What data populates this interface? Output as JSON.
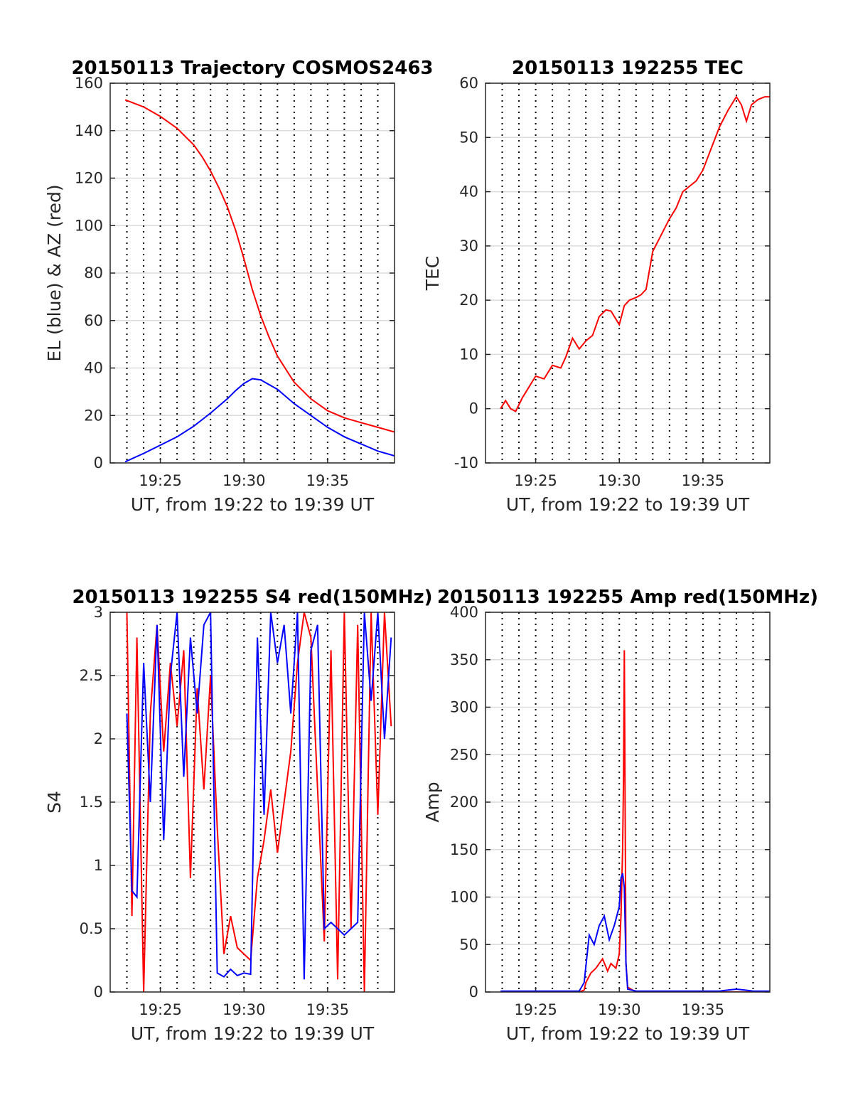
{
  "colors": {
    "red": "#ff0000",
    "blue": "#0000ff"
  },
  "chart_data": [
    {
      "type": "line",
      "title": "20150113 Trajectory COSMOS2463",
      "xlabel": "UT, from 19:22 to 19:39 UT",
      "ylabel": "EL (blue) & AZ (red)",
      "xlim": [
        0,
        17
      ],
      "ylim": [
        0,
        160
      ],
      "yticks": [
        "0",
        "20",
        "40",
        "60",
        "80",
        "100",
        "120",
        "140",
        "160"
      ],
      "xticks": [
        {
          "x": 3,
          "label": "19:25"
        },
        {
          "x": 8,
          "label": "19:30"
        },
        {
          "x": 13,
          "label": "19:35"
        }
      ],
      "grid": true,
      "series": [
        {
          "color": "red",
          "x": [
            0.9,
            2,
            3,
            4,
            5,
            5.5,
            6,
            6.5,
            7,
            7.5,
            8,
            8.5,
            9,
            9.5,
            10,
            11,
            12,
            13,
            14,
            15,
            16,
            17
          ],
          "y": [
            153,
            150,
            146,
            141,
            134,
            129,
            123,
            116,
            108,
            98,
            86,
            73,
            62,
            53,
            45,
            34,
            27,
            22,
            19,
            17,
            15,
            13
          ]
        },
        {
          "color": "blue",
          "x": [
            0.9,
            2,
            3,
            4,
            5,
            6,
            7,
            7.5,
            8,
            8.5,
            9,
            10,
            11,
            12,
            13,
            14,
            15,
            16,
            17
          ],
          "y": [
            0.5,
            4,
            7.5,
            11,
            15.5,
            21,
            27,
            30.5,
            33.5,
            35.5,
            35,
            31,
            25,
            20,
            15,
            11,
            8,
            5,
            3
          ]
        }
      ]
    },
    {
      "type": "line",
      "title": "20150113 192255 TEC",
      "xlabel": "UT, from 19:22 to 19:39 UT",
      "ylabel": "TEC",
      "xlim": [
        0,
        17
      ],
      "ylim": [
        -10,
        60
      ],
      "yticks": [
        "-10",
        "0",
        "10",
        "20",
        "30",
        "40",
        "50",
        "60"
      ],
      "xticks": [
        {
          "x": 3,
          "label": "19:25"
        },
        {
          "x": 8,
          "label": "19:30"
        },
        {
          "x": 13,
          "label": "19:35"
        }
      ],
      "grid": true,
      "series": [
        {
          "color": "red",
          "x": [
            0.9,
            1.2,
            1.5,
            1.8,
            2.2,
            2.6,
            3,
            3.5,
            4,
            4.5,
            4.8,
            5.2,
            5.6,
            6,
            6.4,
            6.8,
            7.2,
            7.5,
            7.8,
            8.0,
            8.3,
            8.6,
            9,
            9.3,
            9.6,
            10,
            10.5,
            11,
            11.4,
            11.8,
            12.2,
            12.6,
            13,
            13.5,
            14,
            14.5,
            15,
            15.3,
            15.6,
            15.9,
            16.3,
            16.7,
            17
          ],
          "y": [
            0,
            1.5,
            0,
            -0.5,
            2,
            4,
            6,
            5.5,
            8,
            7.5,
            9.5,
            13,
            11,
            12.5,
            13.5,
            17,
            18.2,
            18,
            16.5,
            15.5,
            19,
            20,
            20.5,
            21,
            22,
            29,
            32,
            35,
            37,
            40,
            41,
            42,
            44,
            48,
            52,
            55,
            57.5,
            56,
            53,
            56,
            57,
            57.5,
            57.5
          ]
        }
      ]
    },
    {
      "type": "line",
      "title": "20150113 192255 S4 red(150MHz)",
      "xlabel": "UT, from 19:22 to 19:39 UT",
      "ylabel": "S4",
      "xlim": [
        0,
        17
      ],
      "ylim": [
        0,
        3
      ],
      "yticks": [
        "0",
        "0.5",
        "1",
        "1.5",
        "2",
        "2.5",
        "3"
      ],
      "xticks": [
        {
          "x": 3,
          "label": "19:25"
        },
        {
          "x": 8,
          "label": "19:30"
        },
        {
          "x": 13,
          "label": "19:35"
        }
      ],
      "grid": true,
      "series": [
        {
          "color": "red",
          "x": [
            1.0,
            1.3,
            1.6,
            2.0,
            2.4,
            2.8,
            3.2,
            3.6,
            4.0,
            4.4,
            4.8,
            5.2,
            5.6,
            6.0,
            6.4,
            6.8,
            7.2,
            7.6,
            8.0,
            8.4,
            8.8,
            9.2,
            9.6,
            10.0,
            10.4,
            10.8,
            11.2,
            11.6,
            12.0,
            12.4,
            12.8,
            13.2,
            13.6,
            14.0,
            14.4,
            14.8,
            15.2,
            15.6,
            16.0,
            16.4,
            16.8
          ],
          "y": [
            3.0,
            0.6,
            2.8,
            0.0,
            2.2,
            2.9,
            1.9,
            2.6,
            2.1,
            2.7,
            0.9,
            2.4,
            1.6,
            2.5,
            1.3,
            0.3,
            0.6,
            0.35,
            0.3,
            0.25,
            0.9,
            1.2,
            1.6,
            1.1,
            1.5,
            1.9,
            2.6,
            3.0,
            2.8,
            1.6,
            0.4,
            2.7,
            0.1,
            3.0,
            0.5,
            2.9,
            0.0,
            3.0,
            1.4,
            3.0,
            2.1
          ]
        },
        {
          "color": "blue",
          "x": [
            1.0,
            1.3,
            1.6,
            2.0,
            2.4,
            2.8,
            3.2,
            3.6,
            4.0,
            4.4,
            4.8,
            5.2,
            5.6,
            6.0,
            6.4,
            6.8,
            7.2,
            7.6,
            8.0,
            8.4,
            8.8,
            9.2,
            9.6,
            10.0,
            10.4,
            10.8,
            11.2,
            11.6,
            12.0,
            12.4,
            12.8,
            13.2,
            13.6,
            14.0,
            14.4,
            14.8,
            15.2,
            15.6,
            16.0,
            16.4,
            16.8
          ],
          "y": [
            2.2,
            0.8,
            0.75,
            2.6,
            1.5,
            2.9,
            1.2,
            2.5,
            3.0,
            1.7,
            2.8,
            2.2,
            2.9,
            3.0,
            0.15,
            0.12,
            0.18,
            0.13,
            0.15,
            0.14,
            2.8,
            1.4,
            3.0,
            2.6,
            2.9,
            2.2,
            3.0,
            0.1,
            2.7,
            2.9,
            0.5,
            0.55,
            0.5,
            0.45,
            0.5,
            0.55,
            3.0,
            2.3,
            3.0,
            2.0,
            2.8
          ]
        }
      ]
    },
    {
      "type": "line",
      "title": "20150113 192255 Amp red(150MHz)",
      "xlabel": "UT, from 19:22 to 19:39 UT",
      "ylabel": "Amp",
      "xlim": [
        0,
        17
      ],
      "ylim": [
        0,
        400
      ],
      "yticks": [
        "0",
        "50",
        "100",
        "150",
        "200",
        "250",
        "300",
        "350",
        "400"
      ],
      "xticks": [
        {
          "x": 3,
          "label": "19:25"
        },
        {
          "x": 8,
          "label": "19:30"
        },
        {
          "x": 13,
          "label": "19:35"
        }
      ],
      "grid": true,
      "series": [
        {
          "color": "red",
          "x": [
            0.9,
            5.6,
            5.9,
            6.0,
            6.3,
            6.6,
            7.0,
            7.3,
            7.5,
            7.8,
            8.0,
            8.1,
            8.2,
            8.25,
            8.3,
            8.4,
            8.5,
            9.0,
            17
          ],
          "y": [
            0,
            0,
            2,
            10,
            20,
            25,
            35,
            22,
            30,
            25,
            40,
            80,
            150,
            220,
            360,
            30,
            5,
            0,
            0
          ]
        },
        {
          "color": "blue",
          "x": [
            0.9,
            5.6,
            5.9,
            6.2,
            6.5,
            6.8,
            7.1,
            7.4,
            7.7,
            8.0,
            8.1,
            8.2,
            8.3,
            8.4,
            8.5,
            9.0,
            14.0,
            14.5,
            15.0,
            15.5,
            16.0,
            17
          ],
          "y": [
            1,
            1,
            10,
            60,
            50,
            70,
            80,
            55,
            70,
            90,
            120,
            125,
            110,
            30,
            3,
            1,
            1,
            2,
            3,
            2,
            1,
            1
          ]
        }
      ]
    }
  ]
}
